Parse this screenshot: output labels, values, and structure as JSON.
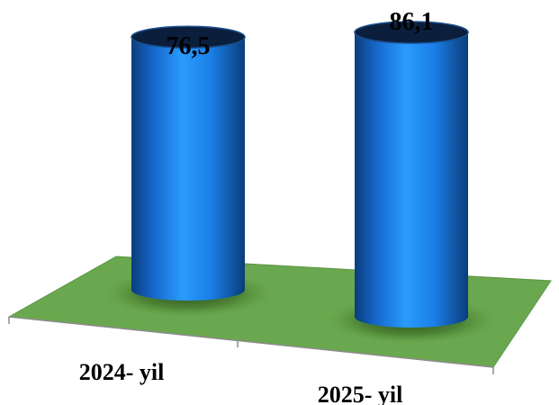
{
  "chart_data": {
    "type": "bar",
    "style": "3d-cylinder",
    "categories": [
      "2024- yil",
      "2025- yil"
    ],
    "values": [
      76.5,
      86.1
    ],
    "data_labels": [
      "76,5",
      "86,1"
    ],
    "title": "",
    "xlabel": "",
    "ylabel": "",
    "ylim": [
      0,
      90
    ],
    "grid": false,
    "legend": "none",
    "colors": {
      "bar": "#1e90f5",
      "bar_dark": "#0a3d7a",
      "bar_top": "#0b1f3d",
      "floor": "#6aa84f",
      "floor_edge": "#8c8c8c"
    }
  }
}
